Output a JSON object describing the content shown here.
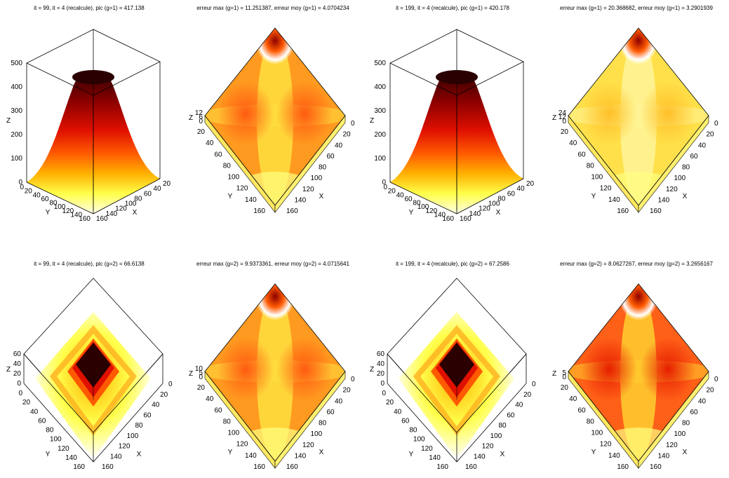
{
  "figure": {
    "layout": "2 rows x 4 columns of 3D surface plots"
  },
  "colors": {
    "colormap": [
      "#2a0000",
      "#8c0000",
      "#e01000",
      "#ff5a00",
      "#ffb000",
      "#ffff4a",
      "#ffffe6"
    ],
    "frame": "#000000",
    "background": "#ffffff"
  },
  "chart_data": [
    {
      "type": "surface3d",
      "title": "it = 99, it = 4 (recalcule), pic (g=1) = 417.138",
      "view": "oblique",
      "shape": "dome",
      "peak": 417.138,
      "xlabel": "X",
      "ylabel": "Y",
      "zlabel": "Z",
      "xticks": [
        "20",
        "40",
        "60",
        "80",
        "100",
        "120",
        "140",
        "160"
      ],
      "yticks": [
        "0",
        "20",
        "40",
        "60",
        "80",
        "100",
        "120",
        "140",
        "160"
      ],
      "zticks": [
        "0",
        "100",
        "200",
        "300",
        "400",
        "500"
      ],
      "zlim": [
        0,
        500
      ]
    },
    {
      "type": "surface3d",
      "title": "erreur max (g=1) = 11.251387, erreur moy (g=1) = 4.0704234",
      "view": "top",
      "shape": "error",
      "xlabel": "X",
      "ylabel": "Y",
      "zlabel": "Z",
      "xticks": [
        "0",
        "20",
        "40",
        "60",
        "80",
        "100",
        "120",
        "140",
        "160"
      ],
      "yticks": [
        "20",
        "40",
        "60",
        "80",
        "100",
        "120",
        "140",
        "160"
      ],
      "zticks": [
        "0",
        "6",
        "12"
      ]
    },
    {
      "type": "surface3d",
      "title": "it = 199, it = 4 (recalcule), pic (g=1) = 420.178",
      "view": "oblique",
      "shape": "dome",
      "peak": 420.178,
      "xlabel": "X",
      "ylabel": "Y",
      "zlabel": "Z",
      "xticks": [
        "20",
        "40",
        "60",
        "80",
        "100",
        "120",
        "140",
        "160"
      ],
      "yticks": [
        "0",
        "20",
        "40",
        "60",
        "80",
        "100",
        "120",
        "140",
        "160"
      ],
      "zticks": [
        "0",
        "100",
        "200",
        "300",
        "400",
        "500"
      ],
      "zlim": [
        0,
        500
      ]
    },
    {
      "type": "surface3d",
      "title": "erreur max (g=1) = 20.368682, erreur moy (g=1) = 3.2901939",
      "view": "top",
      "shape": "error-light",
      "xlabel": "X",
      "ylabel": "Y",
      "zlabel": "Z",
      "xticks": [
        "0",
        "20",
        "40",
        "60",
        "80",
        "100",
        "120",
        "140",
        "160"
      ],
      "yticks": [
        "20",
        "40",
        "60",
        "80",
        "100",
        "120",
        "140",
        "160"
      ],
      "zticks": [
        "0",
        "12",
        "24"
      ]
    },
    {
      "type": "surface3d",
      "title": "it = 99, it = 4 (recalcule), pic (g=2) = 66.6138",
      "view": "high",
      "shape": "mesa",
      "peak": 66.6138,
      "xlabel": "X",
      "ylabel": "Y",
      "zlabel": "Z",
      "xticks": [
        "0",
        "20",
        "40",
        "60",
        "80",
        "100",
        "120",
        "140",
        "160"
      ],
      "yticks": [
        "0",
        "20",
        "40",
        "60",
        "80",
        "100",
        "120",
        "140",
        "160"
      ],
      "zticks": [
        "0",
        "20",
        "40",
        "60"
      ]
    },
    {
      "type": "surface3d",
      "title": "erreur max (g=2) = 9.9373361, erreur moy (g=2) = 4.0715641",
      "view": "top",
      "shape": "error",
      "xlabel": "X",
      "ylabel": "Y",
      "zlabel": "Z",
      "xticks": [
        "0",
        "20",
        "40",
        "60",
        "80",
        "100",
        "120",
        "140",
        "160"
      ],
      "yticks": [
        "20",
        "40",
        "60",
        "80",
        "100",
        "120",
        "140",
        "160"
      ],
      "zticks": [
        "0",
        "5",
        "10"
      ]
    },
    {
      "type": "surface3d",
      "title": "it = 199, it = 4 (recalcule), pic (g=2) = 67.2586",
      "view": "high",
      "shape": "mesa",
      "peak": 67.2586,
      "xlabel": "X",
      "ylabel": "Y",
      "zlabel": "Z",
      "xticks": [
        "0",
        "20",
        "40",
        "60",
        "80",
        "100",
        "120",
        "140",
        "160"
      ],
      "yticks": [
        "0",
        "20",
        "40",
        "60",
        "80",
        "100",
        "120",
        "140",
        "160"
      ],
      "zticks": [
        "0",
        "20",
        "40",
        "60"
      ]
    },
    {
      "type": "surface3d",
      "title": "erreur max (g=2) = 8.0627267, erreur moy (g=2) = 3.2656167",
      "view": "top",
      "shape": "error-strong",
      "xlabel": "X",
      "ylabel": "Y",
      "zlabel": "Z",
      "xticks": [
        "0",
        "20",
        "40",
        "60",
        "80",
        "100",
        "120",
        "140",
        "160"
      ],
      "yticks": [
        "20",
        "40",
        "60",
        "80",
        "100",
        "120",
        "140",
        "160"
      ],
      "zticks": [
        "0",
        "5"
      ]
    }
  ]
}
